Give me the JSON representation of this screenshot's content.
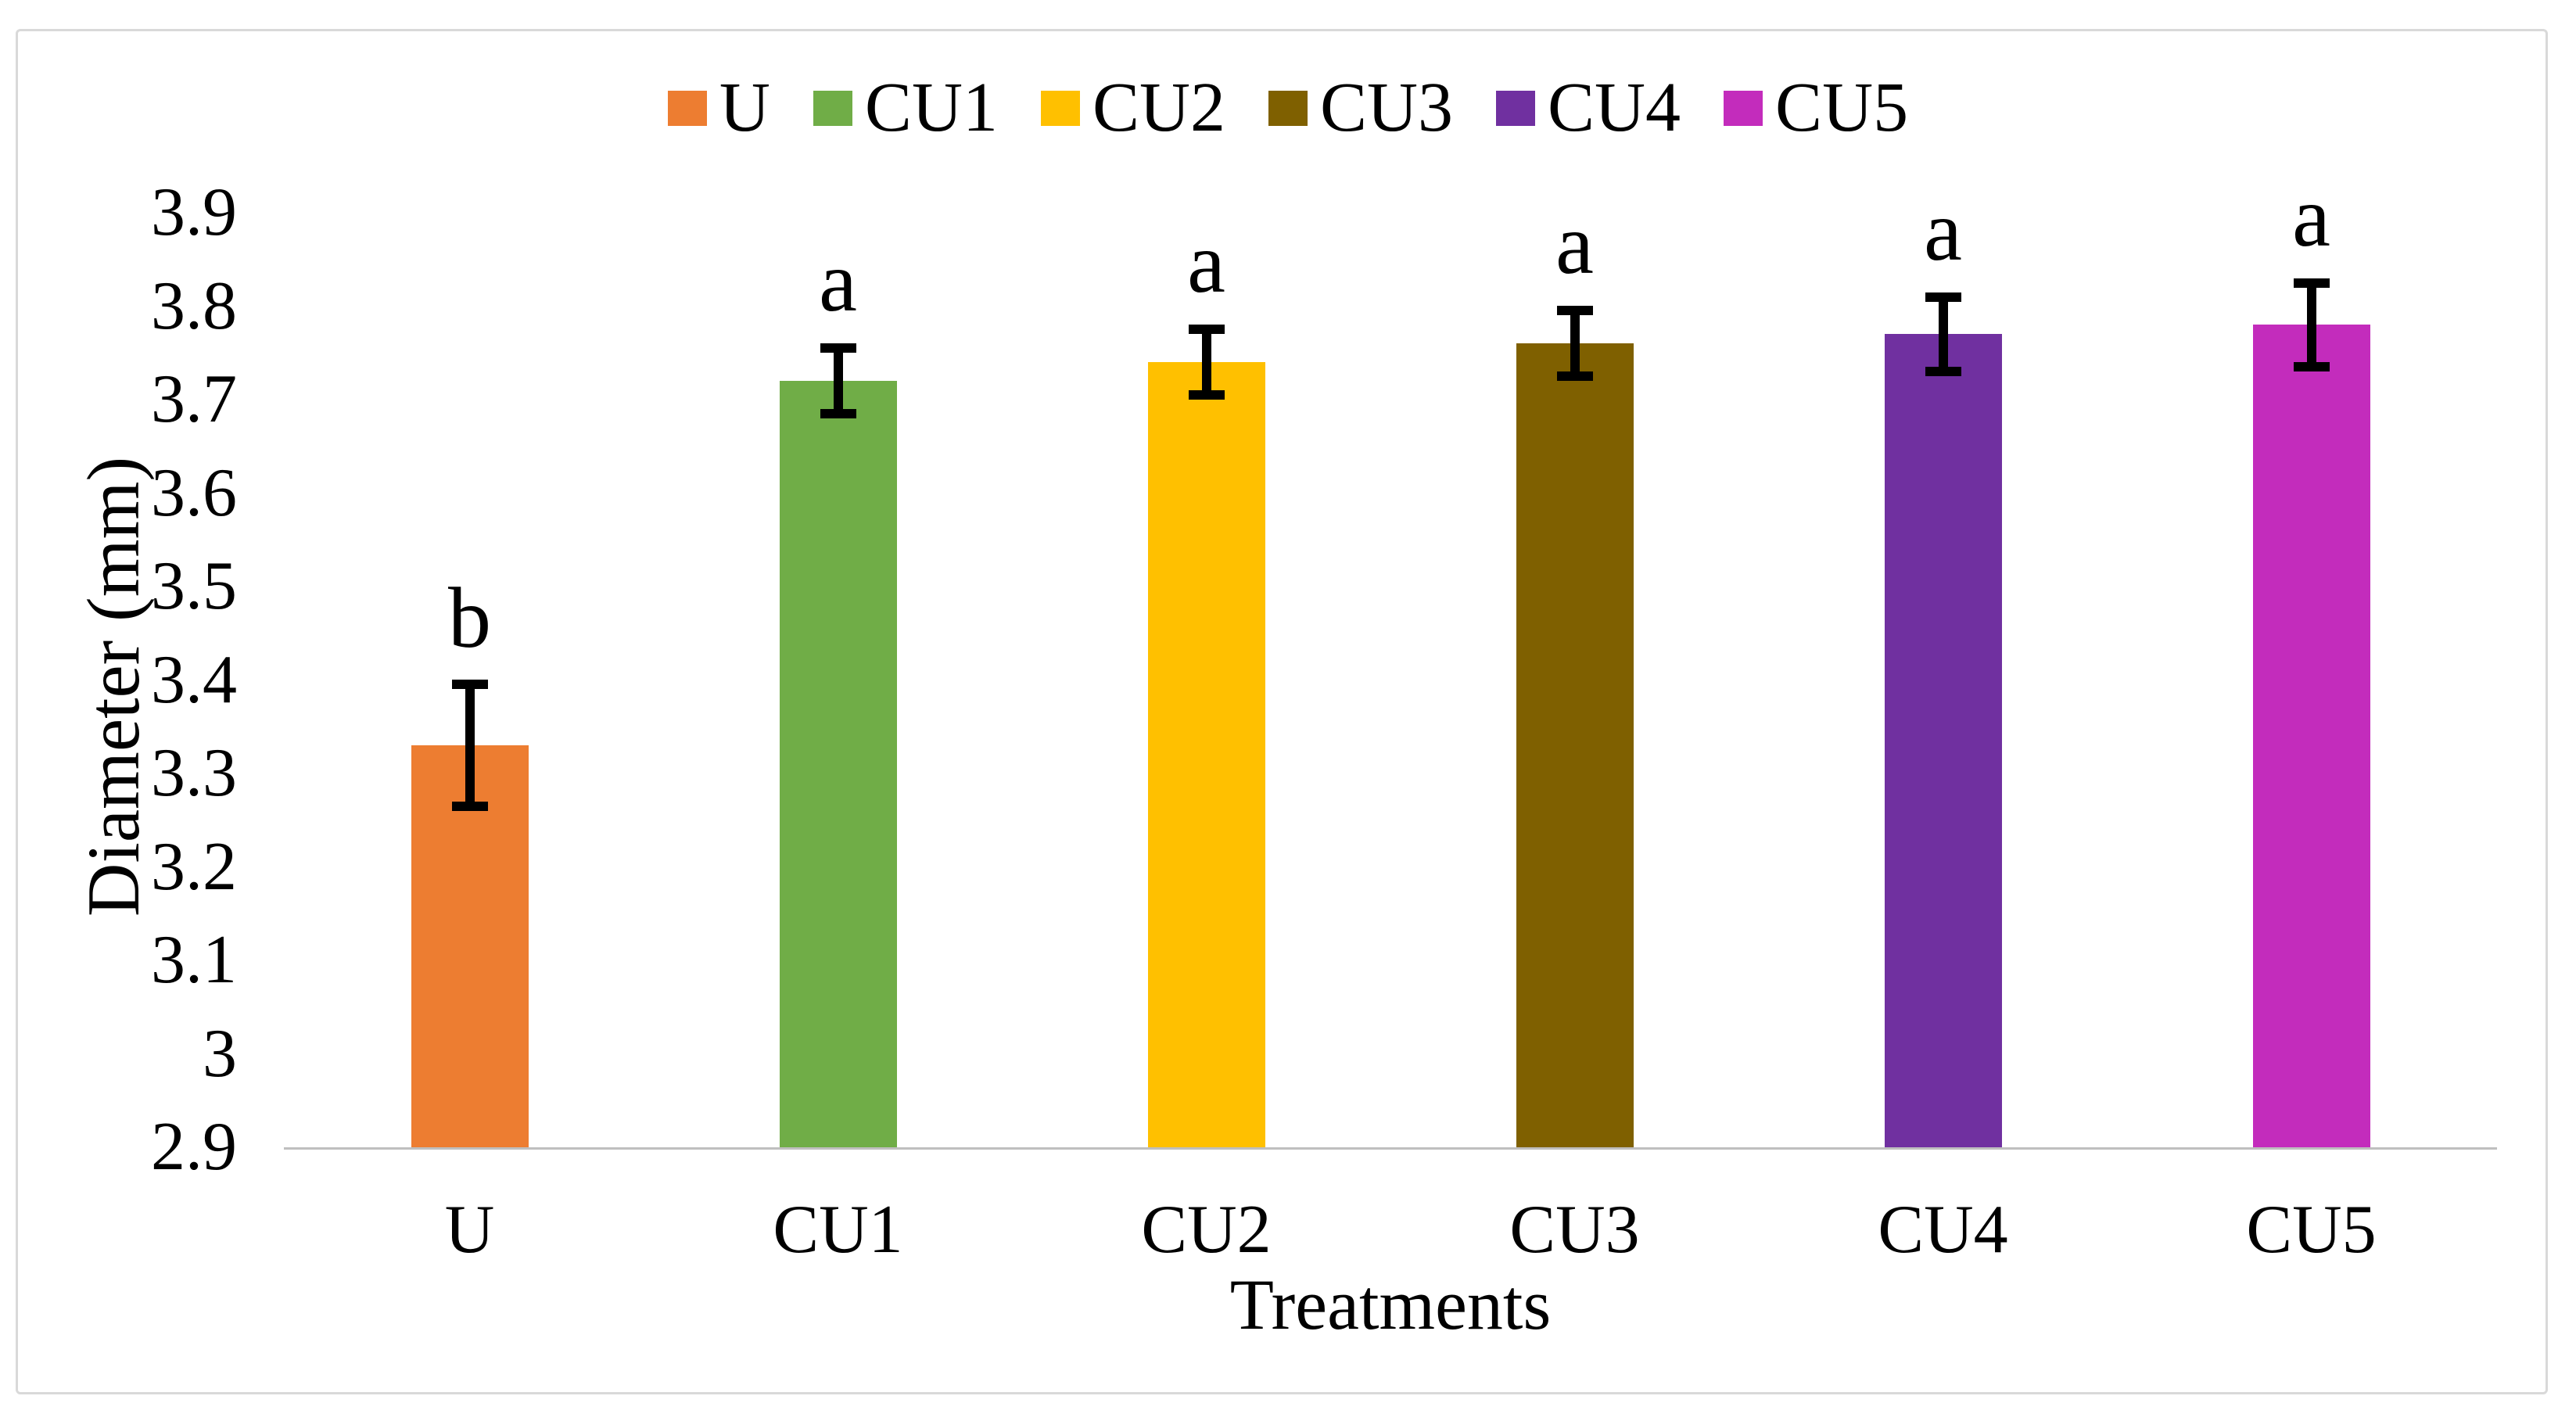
{
  "figure": {
    "background": "#FFFFFF",
    "frame_color": "#D9D9D9"
  },
  "chart_data": {
    "type": "bar",
    "title": "",
    "categories": [
      "U",
      "CU1",
      "CU2",
      "CU3",
      "CU4",
      "CU5"
    ],
    "values": [
      3.33,
      3.72,
      3.74,
      3.76,
      3.77,
      3.78
    ],
    "errors": [
      0.065,
      0.035,
      0.035,
      0.035,
      0.04,
      0.045
    ],
    "significance_letters": [
      "b",
      "a",
      "a",
      "a",
      "a",
      "a"
    ],
    "bar_colors": [
      "#ED7D31",
      "#70AD47",
      "#FFC000",
      "#7F6000",
      "#7030A0",
      "#C32CBC"
    ],
    "xlabel": "Treatments",
    "ylabel": "Diameter (mm)",
    "ylim": [
      2.9,
      3.9
    ],
    "ytick_values": [
      2.9,
      3.0,
      3.1,
      3.2,
      3.3,
      3.4,
      3.5,
      3.6,
      3.7,
      3.8,
      3.9
    ],
    "ytick_labels": [
      "2.9",
      "3",
      "3.1",
      "3.2",
      "3.3",
      "3.4",
      "3.5",
      "3.6",
      "3.7",
      "3.8",
      "3.9"
    ],
    "grid": false,
    "axis_line_color": "#BFBFBF",
    "error_bar_color": "#000000",
    "text_color": "#000000",
    "legend": {
      "position": "top",
      "entries": [
        {
          "label": "U",
          "color": "#ED7D31"
        },
        {
          "label": "CU1",
          "color": "#70AD47"
        },
        {
          "label": "CU2",
          "color": "#FFC000"
        },
        {
          "label": "CU3",
          "color": "#7F6000"
        },
        {
          "label": "CU4",
          "color": "#7030A0"
        },
        {
          "label": "CU5",
          "color": "#C32CBC"
        }
      ]
    }
  }
}
